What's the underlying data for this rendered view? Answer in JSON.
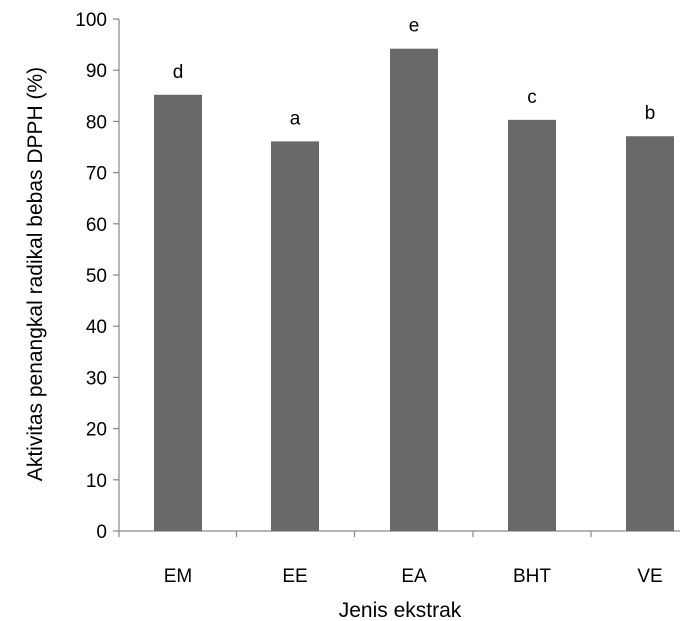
{
  "chart_data": {
    "type": "bar",
    "categories": [
      "EM",
      "EE",
      "EA",
      "BHT",
      "VE"
    ],
    "values": [
      85.2,
      76.1,
      94.2,
      80.3,
      77.1
    ],
    "annotations": [
      "d",
      "a",
      "e",
      "c",
      "b"
    ],
    "xlabel": "Jenis ekstrak",
    "ylabel": "Aktivitas penangkal radikal bebas DPPH (%)",
    "ylim": [
      0,
      100
    ],
    "yticks": [
      0,
      10,
      20,
      30,
      40,
      50,
      60,
      70,
      80,
      90,
      100
    ],
    "grid": false,
    "bar_color": "#686868",
    "axis_color": "#868686"
  }
}
